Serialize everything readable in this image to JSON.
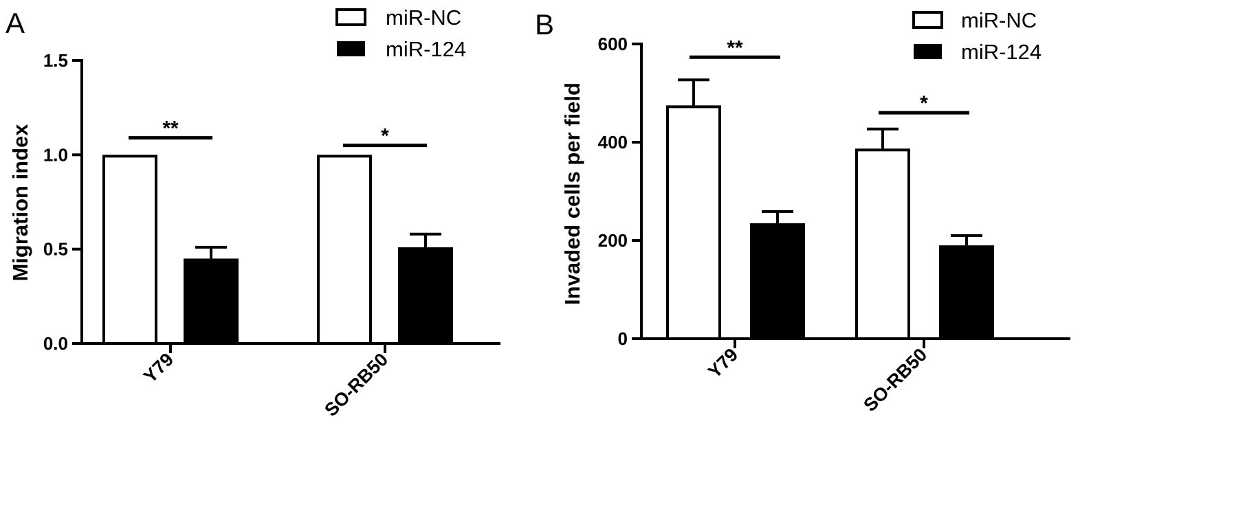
{
  "chart_data": [
    {
      "type": "bar",
      "panel": "A",
      "ylabel": "Migration index",
      "xlabel": "",
      "ylim": [
        0,
        1.5
      ],
      "yticks": [
        0.0,
        0.5,
        1.0,
        1.5
      ],
      "ytick_labels": [
        "0.0",
        "0.5",
        "1.0",
        "1.5"
      ],
      "categories": [
        "Y79",
        "SO-RB50"
      ],
      "series": [
        {
          "name": "miR-NC",
          "values": [
            1.0,
            1.0
          ],
          "errors": [
            0,
            0
          ],
          "fill": "#ffffff"
        },
        {
          "name": "miR-124",
          "values": [
            0.45,
            0.51
          ],
          "errors": [
            0.06,
            0.07
          ],
          "fill": "#000000"
        }
      ],
      "significance": [
        {
          "category": "Y79",
          "label": "**",
          "y": 1.09
        },
        {
          "category": "SO-RB50",
          "label": "*",
          "y": 1.05
        }
      ],
      "legend": "top-right",
      "grid": false
    },
    {
      "type": "bar",
      "panel": "B",
      "ylabel": "Invaded cells per field",
      "xlabel": "",
      "ylim": [
        0,
        600
      ],
      "yticks": [
        0,
        200,
        400,
        600
      ],
      "ytick_labels": [
        "0",
        "200",
        "400",
        "600"
      ],
      "categories": [
        "Y79",
        "SO-RB50"
      ],
      "series": [
        {
          "name": "miR-NC",
          "values": [
            475,
            387
          ],
          "errors": [
            52,
            40
          ],
          "fill": "#ffffff"
        },
        {
          "name": "miR-124",
          "values": [
            235,
            190
          ],
          "errors": [
            24,
            20
          ],
          "fill": "#000000"
        }
      ],
      "significance": [
        {
          "category": "Y79",
          "label": "**",
          "y": 573
        },
        {
          "category": "SO-RB50",
          "label": "*",
          "y": 460
        }
      ],
      "legend": "top-right",
      "grid": false
    }
  ]
}
